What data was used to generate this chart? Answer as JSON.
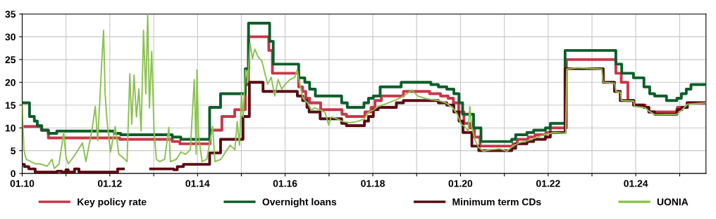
{
  "chart_data": {
    "type": "step",
    "xlim": [
      "2010-01-01",
      "2025-08-08"
    ],
    "ylim": [
      0,
      35
    ],
    "yticks": [
      0,
      5,
      10,
      15,
      20,
      25,
      30,
      35
    ],
    "xticks": [
      {
        "value": "2010-01-01",
        "label": "01.10"
      },
      {
        "value": "2011-01-01",
        "label": null
      },
      {
        "value": "2012-01-01",
        "label": "01.12"
      },
      {
        "value": "2013-01-01",
        "label": null
      },
      {
        "value": "2014-01-01",
        "label": "01.14"
      },
      {
        "value": "2015-01-01",
        "label": null
      },
      {
        "value": "2016-01-01",
        "label": "01.16"
      },
      {
        "value": "2017-01-01",
        "label": null
      },
      {
        "value": "2018-01-01",
        "label": "01.18"
      },
      {
        "value": "2019-01-01",
        "label": null
      },
      {
        "value": "2020-01-01",
        "label": "01.20"
      },
      {
        "value": "2021-01-01",
        "label": null
      },
      {
        "value": "2022-01-01",
        "label": "01.22"
      },
      {
        "value": "2023-01-01",
        "label": null
      },
      {
        "value": "2024-01-01",
        "label": "01.24"
      },
      {
        "value": "2025-01-01",
        "label": null
      }
    ],
    "grid": true,
    "legend": "bottom",
    "series": [
      {
        "name": "Key policy rate",
        "color": "#c8374a",
        "x": [
          "2010-01-01",
          "2010-06-09",
          "2010-08-07",
          "2012-03-24",
          "2013-06-05",
          "2013-08-07",
          "2014-04-16",
          "2014-07-23",
          "2014-11-07",
          "2015-02-03",
          "2015-03-02",
          "2015-08-18",
          "2015-09-17",
          "2016-04-23",
          "2016-05-26",
          "2016-06-21",
          "2016-07-23",
          "2016-10-23",
          "2017-04-19",
          "2017-05-26",
          "2017-10-27",
          "2017-12-17",
          "2018-01-19",
          "2018-03-13",
          "2018-09-13",
          "2019-04-19",
          "2019-07-19",
          "2019-09-20",
          "2019-11-03",
          "2019-12-17",
          "2020-01-30",
          "2020-03-20",
          "2020-04-26",
          "2020-06-13",
          "2021-03-13",
          "2021-04-19",
          "2021-07-19",
          "2021-09-13",
          "2021-12-13",
          "2022-01-19",
          "2022-06-02",
          "2023-07-19",
          "2023-09-02",
          "2023-10-27",
          "2023-12-17",
          "2024-03-20",
          "2024-04-19",
          "2024-12-13",
          "2025-03-03",
          "2025-08-08"
        ],
        "values": [
          10.3,
          9.5,
          7.8,
          7.5,
          7.0,
          6.5,
          9.5,
          12.5,
          14,
          19.5,
          30,
          27,
          22,
          19,
          18,
          16.5,
          15.5,
          14,
          13,
          12.5,
          13.5,
          14.5,
          16,
          17,
          18,
          17.5,
          17,
          16.5,
          15.5,
          13.5,
          11,
          10,
          8,
          6,
          6.5,
          7.5,
          8,
          8.5,
          9,
          10,
          25,
          22,
          20,
          16,
          15,
          14.5,
          13.5,
          14.5,
          15.5,
          15.5
        ]
      },
      {
        "name": "Overnight loans",
        "color": "#0b5e2a",
        "x": [
          "2010-01-01",
          "2010-03-03",
          "2010-04-12",
          "2010-05-07",
          "2010-06-13",
          "2010-08-07",
          "2010-10-16",
          "2012-02-07",
          "2012-04-01",
          "2013-06-05",
          "2013-08-15",
          "2014-04-12",
          "2014-07-12",
          "2015-02-03",
          "2015-03-02",
          "2015-08-25",
          "2015-09-24",
          "2016-04-23",
          "2016-06-13",
          "2016-07-23",
          "2016-09-09",
          "2017-04-16",
          "2017-06-02",
          "2017-10-19",
          "2017-11-26",
          "2018-01-05",
          "2018-03-03",
          "2018-08-25",
          "2019-04-30",
          "2019-07-01",
          "2019-09-09",
          "2019-11-07",
          "2019-12-20",
          "2020-01-19",
          "2020-04-19",
          "2020-06-20",
          "2021-03-03",
          "2021-04-05",
          "2021-07-08",
          "2021-09-02",
          "2021-12-09",
          "2022-01-19",
          "2022-05-22",
          "2023-07-19",
          "2023-09-06",
          "2023-12-13",
          "2024-03-09",
          "2024-04-26",
          "2024-06-06",
          "2024-09-13",
          "2024-12-09",
          "2025-01-15",
          "2025-02-25",
          "2025-04-05",
          "2025-08-08"
        ],
        "values": [
          15.5,
          12.5,
          11.5,
          10.5,
          9.5,
          8.8,
          9.3,
          8.8,
          8.5,
          8,
          7.5,
          14.5,
          17.5,
          23,
          33,
          29,
          24,
          21,
          20,
          18.5,
          17,
          15.5,
          14.5,
          15.5,
          16.5,
          17,
          19,
          20,
          19.5,
          19,
          18.5,
          17.5,
          15.5,
          13,
          10,
          7,
          7.5,
          8.5,
          9,
          9.5,
          10,
          11,
          27,
          24,
          22,
          21,
          19,
          17.5,
          17,
          16,
          16.5,
          17.5,
          18.5,
          19.5,
          19.5
        ]
      },
      {
        "name": "Minimum term CDs",
        "color": "#5a0a12",
        "x": [
          "2010-01-01",
          "2010-01-19",
          "2010-02-25",
          "2010-04-19",
          "2010-10-19",
          "2010-11-26",
          "2011-01-01",
          "2011-01-19",
          "2011-03-13",
          "2011-04-19",
          "2012-03-06",
          "2012-04-23",
          "2012-12-06",
          "2013-06-17",
          "2013-07-16",
          "2013-09-06",
          "2014-04-12",
          "2014-07-12",
          "2015-01-15",
          "2015-03-09",
          "2015-07-01",
          "2016-04-12",
          "2016-05-26",
          "2016-07-01",
          "2016-07-19",
          "2016-10-19",
          "2017-04-16",
          "2017-05-26",
          "2017-10-23",
          "2017-11-26",
          "2018-01-05",
          "2018-02-14",
          "2018-07-16",
          "2018-09-13",
          "2019-07-01",
          "2019-09-09",
          "2019-11-07",
          "2019-12-20",
          "2020-01-22",
          "2020-04-05",
          "2020-06-02",
          "2021-03-03",
          "2021-04-05",
          "2021-07-08",
          "2021-09-02",
          "2021-12-09",
          "2022-01-19",
          "2022-05-22",
          "2023-04-05",
          "2023-07-08",
          "2023-08-25",
          "2023-12-13",
          "2024-03-09",
          "2024-04-19",
          "2024-06-06",
          "2024-12-09",
          "2025-01-19",
          "2025-03-06",
          "2025-08-08"
        ],
        "values": [
          2,
          1.5,
          1,
          0.3,
          0.5,
          0.3,
          0.8,
          0.3,
          1,
          0.3,
          1,
          null,
          1,
          0.8,
          1.5,
          2,
          4.5,
          7.5,
          12.5,
          20,
          18,
          17,
          16,
          14.5,
          13.5,
          12,
          11,
          10.5,
          11.5,
          12.5,
          14,
          14.5,
          15.5,
          16,
          15.5,
          15,
          13.5,
          11.5,
          9,
          6,
          5,
          5.5,
          6.5,
          7,
          7.5,
          8,
          9,
          23,
          20,
          18,
          16,
          15,
          14.5,
          13.5,
          13,
          14,
          14.5,
          15.5,
          15.5
        ]
      },
      {
        "name": "UONIA",
        "color": "#8cc152",
        "type": "line",
        "x": [
          "2010-01-01",
          "2010-01-15",
          "2010-02-03",
          "2010-03-14",
          "2010-04-22",
          "2010-05-31",
          "2010-07-29",
          "2010-09-06",
          "2010-09-26",
          "2010-11-04",
          "2010-12-13",
          "2011-01-01",
          "2011-01-21",
          "2011-03-20",
          "2011-05-18",
          "2011-06-16",
          "2011-08-04",
          "2011-09-02",
          "2011-09-22",
          "2011-10-11",
          "2011-10-25",
          "2011-11-10",
          "2011-11-23",
          "2011-12-09",
          "2012-01-07",
          "2012-02-15",
          "2012-03-16",
          "2012-04-15",
          "2012-05-24",
          "2012-06-16",
          "2012-07-02",
          "2012-07-21",
          "2012-08-10",
          "2012-08-30",
          "2012-09-18",
          "2012-10-08",
          "2012-10-27",
          "2012-11-12",
          "2012-11-26",
          "2012-12-15",
          "2013-01-04",
          "2013-01-23",
          "2013-02-21",
          "2013-04-02",
          "2013-05-07",
          "2013-05-20",
          "2013-07-08",
          "2013-08-16",
          "2013-09-24",
          "2013-11-02",
          "2013-12-05",
          "2013-12-21",
          "2013-12-27",
          "2014-01-10",
          "2014-02-08",
          "2014-03-19",
          "2014-05-07",
          "2014-05-26",
          "2014-07-14",
          "2014-08-22",
          "2014-09-30",
          "2014-11-08",
          "2014-11-28",
          "2014-12-17",
          "2015-01-02",
          "2015-01-16",
          "2015-02-04",
          "2015-02-24",
          "2015-03-15",
          "2015-04-04",
          "2015-04-23",
          "2015-05-23",
          "2015-06-21",
          "2015-07-20",
          "2015-08-09",
          "2015-09-07",
          "2015-10-06",
          "2015-11-04",
          "2015-12-04",
          "2016-01-02",
          "2016-02-10",
          "2016-03-21",
          "2016-04-10",
          "2016-04-29",
          "2016-05-28",
          "2016-07-07",
          "2016-08-05",
          "2016-09-03",
          "2016-10-22",
          "2016-11-30",
          "2016-12-29",
          "2017-01-18",
          "2017-02-26",
          "2017-04-26",
          "2017-06-23",
          "2017-08-21",
          "2017-10-18",
          "2017-11-26",
          "2018-01-04",
          "2018-02-12",
          "2018-04-12",
          "2018-06-29",
          "2018-09-15",
          "2018-11-23",
          "2019-01-10",
          "2019-03-10",
          "2019-05-08",
          "2019-07-05",
          "2019-09-02",
          "2019-10-30",
          "2019-12-08",
          "2020-01-07",
          "2020-02-05",
          "2020-03-05",
          "2020-03-19",
          "2020-04-03",
          "2020-05-03",
          "2020-06-01",
          "2020-07-10",
          "2020-09-07",
          "2020-11-24",
          "2021-01-23",
          "2021-03-12",
          "2021-04-30",
          "2021-07-17",
          "2021-09-14",
          "2021-12-01",
          "2022-02-17",
          "2022-05-26",
          "2022-06-05",
          "2022-08-31",
          "2023-03-24",
          "2023-04-03",
          "2023-07-10",
          "2023-07-20",
          "2023-08-28",
          "2023-09-03",
          "2023-12-13",
          "2023-12-23",
          "2024-03-20",
          "2024-04-18",
          "2024-06-06",
          "2024-12-08",
          "2025-01-17",
          "2025-03-07",
          "2025-08-08"
        ],
        "values": [
          15,
          5.2,
          3.1,
          2.6,
          2.1,
          2.1,
          1.6,
          3.1,
          1.1,
          2.1,
          9.0,
          3.5,
          2.1,
          4.2,
          6.7,
          2.6,
          9.3,
          14.7,
          7.2,
          16.5,
          23.9,
          31.4,
          17.5,
          11.4,
          4.7,
          10.3,
          4.2,
          3.6,
          2.6,
          21.9,
          10.8,
          21.6,
          12.4,
          18.5,
          9.3,
          31.4,
          17.5,
          35,
          14.4,
          26.8,
          9.3,
          3.1,
          2.6,
          3.1,
          10.1,
          2.6,
          3.1,
          4.7,
          4.2,
          5.2,
          20.6,
          4.2,
          22.7,
          8.3,
          2.6,
          3.1,
          10.3,
          2.6,
          3.1,
          4.7,
          6.2,
          5.2,
          11.4,
          6.2,
          17.5,
          12.4,
          22.7,
          20.1,
          28.6,
          25.2,
          27.3,
          25.5,
          24.7,
          21.6,
          19.6,
          21.1,
          17.0,
          20.6,
          18.5,
          19.6,
          20.6,
          21.1,
          22.7,
          20.1,
          16.5,
          15.5,
          13.9,
          14.4,
          13.9,
          13.4,
          10.6,
          12.4,
          12.1,
          11.4,
          11.1,
          11.4,
          11.9,
          13.4,
          13.9,
          14.7,
          15.2,
          16.0,
          17.0,
          18.3,
          17.0,
          16.5,
          16.2,
          16.0,
          15.5,
          14.4,
          12.9,
          10.8,
          10.3,
          9.3,
          14.7,
          10.3,
          7.2,
          5.7,
          4.9,
          5.2,
          5.4,
          4.9,
          6.0,
          6.7,
          7.2,
          7.8,
          8.5,
          9.0,
          8.8,
          22.9,
          23.2,
          22.9,
          20.0,
          19.8,
          18.0,
          17.8,
          16.0,
          15.9,
          14.7,
          14.4,
          13.7,
          12.9,
          13.0,
          13.9,
          15.2,
          15.5
        ]
      }
    ]
  }
}
